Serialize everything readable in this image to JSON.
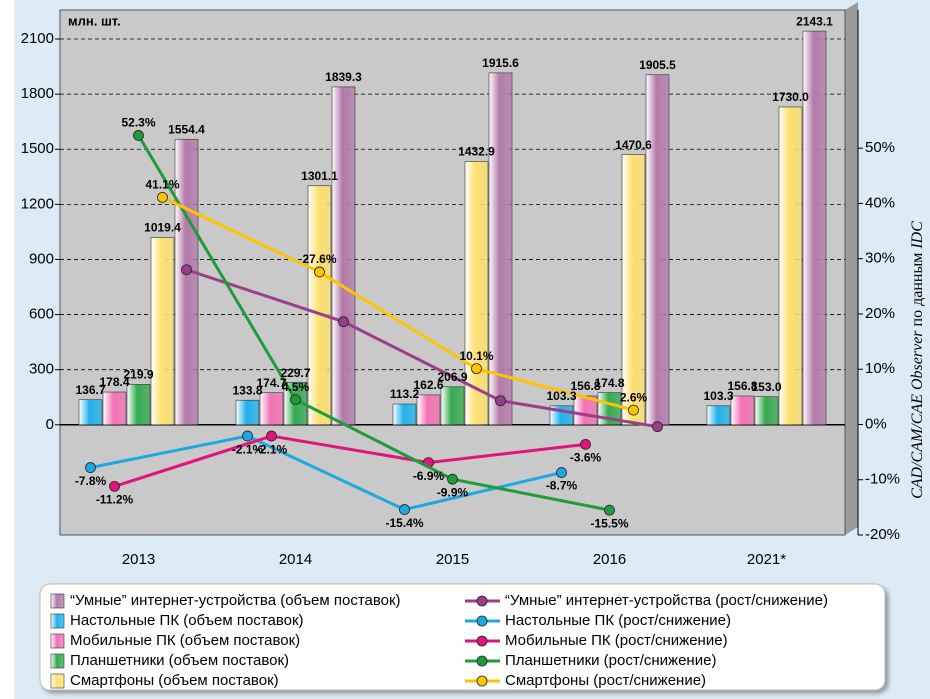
{
  "chart_data": {
    "type": "bar",
    "unit_label": "млн. шт.",
    "source": [
      "CAD/CAM/CAE Observer",
      "по данным",
      "IDC"
    ],
    "categories": [
      "2013",
      "2014",
      "2015",
      "2016",
      "2021*"
    ],
    "ylim": [
      -600,
      2258
    ],
    "yticks": [
      0,
      300,
      600,
      900,
      1200,
      1500,
      1800,
      2100
    ],
    "y2lim": [
      -20,
      75
    ],
    "y2ticks": [
      {
        "value": -20,
        "label": "-20%"
      },
      {
        "value": -10,
        "label": "-10%"
      },
      {
        "value": 0,
        "label": "0%"
      },
      {
        "value": 10,
        "label": "10%"
      },
      {
        "value": 20,
        "label": "20%"
      },
      {
        "value": 30,
        "label": "30%"
      },
      {
        "value": 40,
        "label": "40%"
      },
      {
        "value": 50,
        "label": "50%"
      }
    ],
    "grid": true,
    "series": [
      {
        "type": "bar",
        "name": "“Умные” интернет-устройства (объем поставок)",
        "color": "#b47aaa",
        "values": [
          1554.4,
          1839.3,
          1915.6,
          1905.5,
          2143.1
        ],
        "value_labels": [
          "1554.4",
          "1839.3",
          "1915.6",
          "1905.5",
          "2143.1"
        ]
      },
      {
        "type": "bar",
        "name": "Настольные ПК (объем поставок)",
        "color": "#22b2ea",
        "values": [
          136.7,
          133.8,
          113.2,
          103.3,
          103.3
        ],
        "value_labels": [
          "136.7",
          "133.8",
          "113.2",
          "103.3",
          "103.3"
        ]
      },
      {
        "type": "bar",
        "name": "Мобильные ПК (объем поставок)",
        "color": "#f272b4",
        "values": [
          178.4,
          174.7,
          162.6,
          156.8,
          156.8
        ],
        "value_labels": [
          "178.4",
          "174.7",
          "162.6",
          "156.8",
          "156.8"
        ]
      },
      {
        "type": "bar",
        "name": "Планшетники (объем поставок)",
        "color": "#34aa50",
        "values": [
          219.9,
          229.7,
          206.9,
          174.8,
          153.0
        ],
        "value_labels": [
          "219.9",
          "229.7",
          "206.9",
          "174.8",
          "153.0"
        ]
      },
      {
        "type": "bar",
        "name": "Смартфоны (объем поставок)",
        "color": "#ffe070",
        "values": [
          1019.4,
          1301.1,
          1432.9,
          1470.6,
          1730.0
        ],
        "value_labels": [
          "1019.4",
          "1301.1",
          "1432.9",
          "1470.6",
          "1730.0"
        ]
      },
      {
        "type": "line",
        "axis": "y2",
        "name": "“Умные” интернет-устройства (рост/снижение)",
        "color": "#9a3e8c",
        "values": [
          28,
          18.6,
          4.3,
          -0.4,
          null
        ]
      },
      {
        "type": "line",
        "axis": "y2",
        "name": "Настольные ПК (рост/снижение)",
        "color": "#1ea8e0",
        "values": [
          -7.8,
          -2.1,
          -15.4,
          -8.7,
          null
        ],
        "value_labels": [
          "-7.8%",
          "-2.1%",
          "-15.4%",
          "-8.7%",
          null
        ]
      },
      {
        "type": "line",
        "axis": "y2",
        "name": "Мобильные ПК (рост/снижение)",
        "color": "#e2137c",
        "values": [
          -11.2,
          -2.1,
          -6.9,
          -3.6,
          null
        ],
        "value_labels": [
          "-11.2%",
          "-2.1%",
          "-6.9%",
          "-3.6%",
          null
        ]
      },
      {
        "type": "line",
        "axis": "y2",
        "name": "Планшетники (рост/снижение)",
        "color": "#1f9c3a",
        "values": [
          52.3,
          4.5,
          -9.9,
          -15.5,
          null
        ],
        "value_labels": [
          "52.3%",
          "4.5%",
          "-9.9%",
          "-15.5%",
          null
        ]
      },
      {
        "type": "line",
        "axis": "y2",
        "name": "Смартфоны (рост/снижение)",
        "color": "#ffc400",
        "values": [
          41.1,
          27.6,
          10.1,
          2.6,
          null
        ],
        "value_labels": [
          "41.1%",
          "27.6%",
          "10.1%",
          "2.6%",
          null
        ]
      }
    ]
  }
}
